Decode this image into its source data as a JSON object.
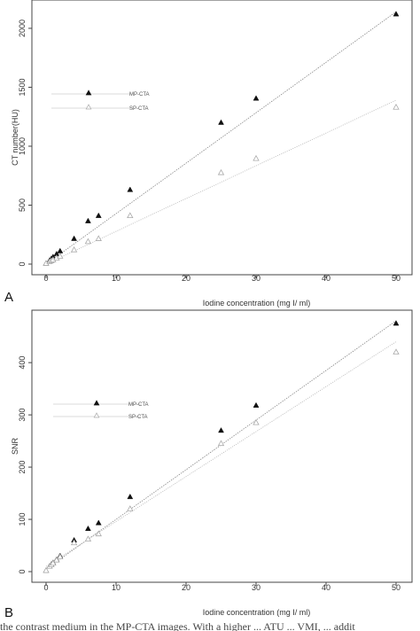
{
  "chart_data": [
    {
      "type": "scatter",
      "panel_label": "A",
      "xlabel": "Iodine concentration (mg I/ ml)",
      "ylabel": "CT number(HU)",
      "xlim": [
        0,
        50
      ],
      "ylim": [
        0,
        2150
      ],
      "x_ticks": [
        "0",
        "10",
        "20",
        "30",
        "40",
        "50"
      ],
      "y_ticks": [
        "0",
        "500",
        "1000",
        "1500",
        "2000"
      ],
      "legend_position": "upper-left",
      "grid": false,
      "series": [
        {
          "name": "MP-CTA",
          "marker": "filled-triangle",
          "color": "#111111",
          "fit_line": [
            [
              0,
              0
            ],
            [
              50,
              2140
            ]
          ],
          "points": [
            [
              0,
              5
            ],
            [
              0.5,
              30
            ],
            [
              0.75,
              45
            ],
            [
              1,
              60
            ],
            [
              1.5,
              85
            ],
            [
              2,
              110
            ],
            [
              4,
              215
            ],
            [
              6,
              365
            ],
            [
              7.5,
              410
            ],
            [
              12,
              630
            ],
            [
              25,
              1200
            ],
            [
              30,
              1405
            ],
            [
              50,
              2120
            ]
          ]
        },
        {
          "name": "SP-CTA",
          "marker": "open-triangle",
          "color": "#aaaaaa",
          "fit_line": [
            [
              0,
              0
            ],
            [
              50,
              1390
            ]
          ],
          "points": [
            [
              0,
              5
            ],
            [
              0.5,
              20
            ],
            [
              0.75,
              28
            ],
            [
              1,
              35
            ],
            [
              1.5,
              50
            ],
            [
              2,
              65
            ],
            [
              4,
              120
            ],
            [
              6,
              190
            ],
            [
              7.5,
              215
            ],
            [
              12,
              410
            ],
            [
              25,
              775
            ],
            [
              30,
              895
            ],
            [
              50,
              1330
            ]
          ]
        }
      ]
    },
    {
      "type": "scatter",
      "panel_label": "B",
      "xlabel": "Iodine concentration (mg I/ ml)",
      "ylabel": "SNR",
      "xlim": [
        0,
        50
      ],
      "ylim": [
        0,
        480
      ],
      "x_ticks": [
        "0",
        "10",
        "20",
        "30",
        "40",
        "50"
      ],
      "y_ticks": [
        "0",
        "100",
        "200",
        "300",
        "400"
      ],
      "legend_position": "upper-left",
      "grid": false,
      "series": [
        {
          "name": "MP-CTA",
          "marker": "filled-triangle",
          "color": "#111111",
          "fit_line": [
            [
              0,
              5
            ],
            [
              50,
              480
            ]
          ],
          "points": [
            [
              0,
              2
            ],
            [
              0.5,
              10
            ],
            [
              0.75,
              14
            ],
            [
              1,
              17
            ],
            [
              1.5,
              23
            ],
            [
              2,
              30
            ],
            [
              4,
              60
            ],
            [
              6,
              82
            ],
            [
              7.5,
              93
            ],
            [
              12,
              143
            ],
            [
              25,
              270
            ],
            [
              30,
              318
            ],
            [
              50,
              475
            ]
          ]
        },
        {
          "name": "SP-CTA",
          "marker": "open-triangle",
          "color": "#aaaaaa",
          "fit_line": [
            [
              0,
              10
            ],
            [
              50,
              440
            ]
          ],
          "points": [
            [
              0,
              2
            ],
            [
              0.5,
              10
            ],
            [
              0.75,
              13
            ],
            [
              1,
              16
            ],
            [
              1.5,
              22
            ],
            [
              2,
              28
            ],
            [
              4,
              55
            ],
            [
              6,
              62
            ],
            [
              7.5,
              72
            ],
            [
              12,
              120
            ],
            [
              25,
              245
            ],
            [
              30,
              285
            ],
            [
              50,
              420
            ]
          ]
        }
      ]
    }
  ],
  "caption_text": "the contrast medium in the MP-CTA images. With a higher ... ATU ... VMI, ... addit"
}
